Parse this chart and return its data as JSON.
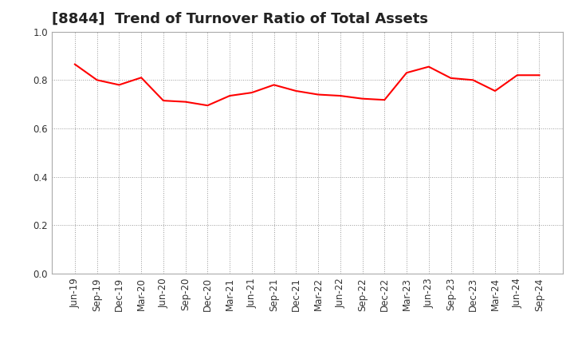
{
  "title": "[8844]  Trend of Turnover Ratio of Total Assets",
  "line_color": "#FF0000",
  "line_width": 1.5,
  "background_color": "#FFFFFF",
  "grid_color": "#999999",
  "ylim": [
    0.0,
    1.0
  ],
  "yticks": [
    0.0,
    0.2,
    0.4,
    0.6,
    0.8,
    1.0
  ],
  "labels": [
    "Jun-19",
    "Sep-19",
    "Dec-19",
    "Mar-20",
    "Jun-20",
    "Sep-20",
    "Dec-20",
    "Mar-21",
    "Jun-21",
    "Sep-21",
    "Dec-21",
    "Mar-22",
    "Jun-22",
    "Sep-22",
    "Dec-22",
    "Mar-23",
    "Jun-23",
    "Sep-23",
    "Dec-23",
    "Mar-24",
    "Jun-24",
    "Sep-24"
  ],
  "values": [
    0.865,
    0.8,
    0.78,
    0.81,
    0.715,
    0.71,
    0.695,
    0.735,
    0.748,
    0.78,
    0.755,
    0.74,
    0.735,
    0.723,
    0.718,
    0.83,
    0.855,
    0.808,
    0.8,
    0.755,
    0.82,
    0.82
  ],
  "title_fontsize": 13,
  "tick_fontsize": 8.5,
  "fig_width": 7.2,
  "fig_height": 4.4,
  "dpi": 100
}
